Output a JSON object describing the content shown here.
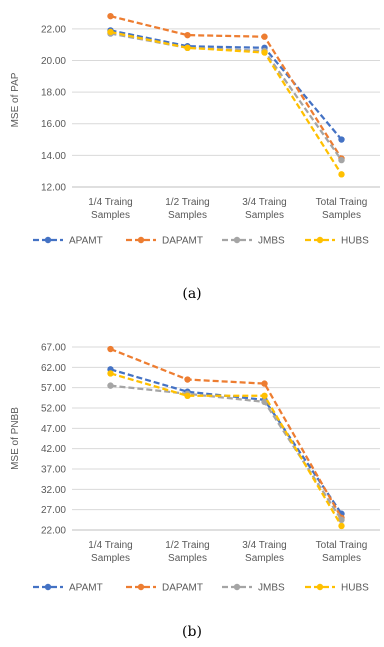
{
  "chart_data": [
    {
      "type": "line",
      "caption": "(a)",
      "ylabel": "MSE of PAP",
      "ylim": [
        12,
        23
      ],
      "yticks": [
        "12.00",
        "14.00",
        "16.00",
        "18.00",
        "20.00",
        "22.00"
      ],
      "categories": [
        "1/4 Traing Samples",
        "1/2 Traing Samples",
        "3/4 Traing Samples",
        "Total Traing Samples"
      ],
      "category_lines": [
        [
          "1/4 Traing",
          "Samples"
        ],
        [
          "1/2 Traing",
          "Samples"
        ],
        [
          "3/4 Traing",
          "Samples"
        ],
        [
          "Total Traing",
          "Samples"
        ]
      ],
      "legend_position": "bottom",
      "grid": true,
      "series": [
        {
          "name": "APAMT",
          "color": "#4472C4",
          "values": [
            21.9,
            20.9,
            20.8,
            15.0
          ]
        },
        {
          "name": "DAPAMT",
          "color": "#ED7D31",
          "values": [
            22.8,
            21.6,
            21.5,
            13.8
          ]
        },
        {
          "name": "JMBS",
          "color": "#A5A5A5",
          "values": [
            21.7,
            20.8,
            20.6,
            13.7
          ]
        },
        {
          "name": "HUBS",
          "color": "#FFC000",
          "values": [
            21.8,
            20.8,
            20.5,
            12.8
          ]
        }
      ]
    },
    {
      "type": "line",
      "caption": "(b)",
      "ylabel": "MSE of PNBB",
      "ylim": [
        22,
        67
      ],
      "yticks": [
        "22.00",
        "27.00",
        "32.00",
        "37.00",
        "42.00",
        "47.00",
        "52.00",
        "57.00",
        "62.00",
        "67.00"
      ],
      "categories": [
        "1/4 Traing Samples",
        "1/2 Traing Samples",
        "3/4 Traing Samples",
        "Total Traing Samples"
      ],
      "category_lines": [
        [
          "1/4 Traing",
          "Samples"
        ],
        [
          "1/2 Traing",
          "Samples"
        ],
        [
          "3/4 Traing",
          "Samples"
        ],
        [
          "Total Traing",
          "Samples"
        ]
      ],
      "legend_position": "bottom",
      "grid": true,
      "series": [
        {
          "name": "APAMT",
          "color": "#4472C4",
          "values": [
            61.5,
            56.0,
            54.0,
            26.0
          ]
        },
        {
          "name": "DAPAMT",
          "color": "#ED7D31",
          "values": [
            66.5,
            59.0,
            58.0,
            25.0
          ]
        },
        {
          "name": "JMBS",
          "color": "#A5A5A5",
          "values": [
            57.5,
            55.5,
            53.5,
            24.5
          ]
        },
        {
          "name": "HUBS",
          "color": "#FFC000",
          "values": [
            60.5,
            55.0,
            55.0,
            23.0
          ]
        }
      ]
    }
  ]
}
